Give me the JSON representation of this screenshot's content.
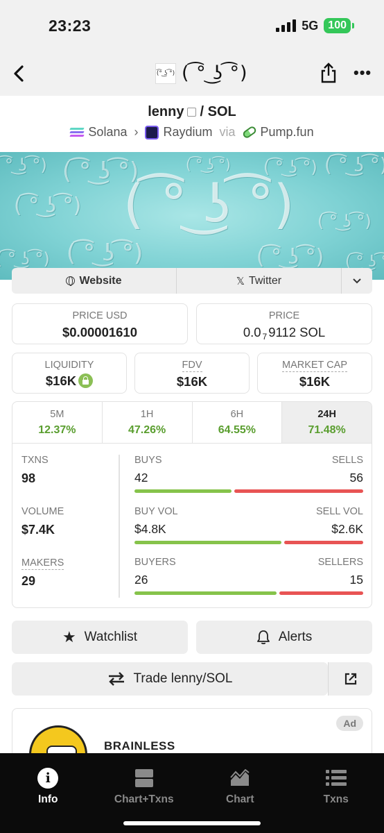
{
  "status": {
    "time": "23:23",
    "network": "5G",
    "battery": "100"
  },
  "nav": {
    "token_logo_text": "(͡° ͜ʖ ͡°)",
    "title": "( ͡° ͜ʖ ͡°)"
  },
  "pair": {
    "base": "lenny",
    "separator": "/",
    "quote": "SOL"
  },
  "chain": {
    "chain_name": "Solana",
    "dex_name": "Raydium",
    "via_text": "via",
    "launchpad": "Pump.fun"
  },
  "banner": {
    "face_text": "( ͡° ͜ʖ ͡°)"
  },
  "social": {
    "website_label": "Website",
    "twitter_label": "Twitter"
  },
  "price": {
    "usd_label": "PRICE USD",
    "usd_value": "$0.00001610",
    "native_label": "PRICE",
    "native_prefix": "0.0",
    "native_subscript": "7",
    "native_digits": "9112",
    "native_unit": "SOL"
  },
  "stats": {
    "liquidity_label": "LIQUIDITY",
    "liquidity_value": "$16K",
    "fdv_label": "FDV",
    "fdv_value": "$16K",
    "mcap_label": "MARKET CAP",
    "mcap_value": "$16K"
  },
  "timeframes": [
    {
      "label": "5M",
      "change": "12.37%"
    },
    {
      "label": "1H",
      "change": "47.26%"
    },
    {
      "label": "6H",
      "change": "64.55%"
    },
    {
      "label": "24H",
      "change": "71.48%"
    }
  ],
  "selected_timeframe": "24H",
  "txn_stats": {
    "txns_label": "TXNS",
    "txns_value": "98",
    "volume_label": "VOLUME",
    "volume_value": "$7.4K",
    "makers_label": "MAKERS",
    "makers_value": "29"
  },
  "ratios": [
    {
      "left_label": "BUYS",
      "right_label": "SELLS",
      "left_value": "42",
      "right_value": "56",
      "left_fraction": 0.43
    },
    {
      "left_label": "BUY VOL",
      "right_label": "SELL VOL",
      "left_value": "$4.8K",
      "right_value": "$2.6K",
      "left_fraction": 0.65
    },
    {
      "left_label": "BUYERS",
      "right_label": "SELLERS",
      "left_value": "26",
      "right_value": "15",
      "left_fraction": 0.63
    }
  ],
  "actions": {
    "watchlist_label": "Watchlist",
    "alerts_label": "Alerts",
    "trade_label": "Trade lenny/SOL"
  },
  "ad": {
    "badge": "Ad",
    "title": "BRAINLESS"
  },
  "tabs": [
    {
      "label": "Info",
      "icon": "info-icon"
    },
    {
      "label": "Chart+Txns",
      "icon": "split-view-icon"
    },
    {
      "label": "Chart",
      "icon": "chart-icon"
    },
    {
      "label": "Txns",
      "icon": "list-icon"
    }
  ],
  "colors": {
    "positive": "#5a9e2f",
    "buy_bar": "#86c34b",
    "sell_bar": "#e85454",
    "tabbar_bg": "#0b0b0b"
  }
}
